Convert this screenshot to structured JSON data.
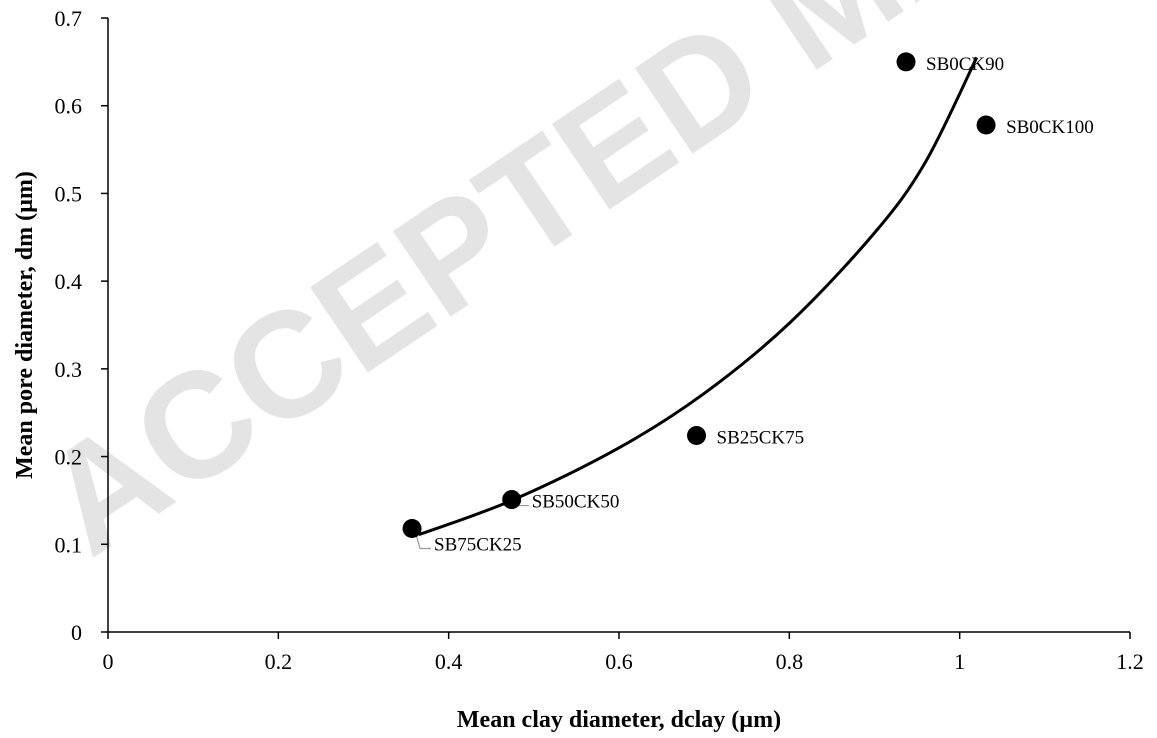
{
  "watermark": "ACCEPTED MANUSCRIPT",
  "chart_data": {
    "type": "scatter",
    "xlabel": "Mean clay diameter, dclay (µm)",
    "ylabel": "Mean pore diameter, dm (µm)",
    "xlim": [
      0,
      1.2
    ],
    "ylim": [
      0,
      0.7
    ],
    "x_ticks": [
      "0",
      "0.2",
      "0.4",
      "0.6",
      "0.8",
      "1",
      "1.2"
    ],
    "y_ticks": [
      "0",
      "0.1",
      "0.2",
      "0.3",
      "0.4",
      "0.5",
      "0.6",
      "0.7"
    ],
    "grid": "none",
    "legend": "none",
    "points": [
      {
        "label": "SB75CK25",
        "x": 0.357,
        "y": 0.118
      },
      {
        "label": "SB50CK50",
        "x": 0.474,
        "y": 0.151
      },
      {
        "label": "SB25CK75",
        "x": 0.691,
        "y": 0.224
      },
      {
        "label": "SB0CK90",
        "x": 0.937,
        "y": 0.65
      },
      {
        "label": "SB0CK100",
        "x": 1.031,
        "y": 0.578
      }
    ],
    "trendline": {
      "type": "exponential",
      "x": [
        0.365,
        0.474,
        0.6,
        0.7,
        0.8,
        0.9,
        0.96,
        1.02
      ],
      "y": [
        0.111,
        0.15,
        0.21,
        0.272,
        0.352,
        0.455,
        0.536,
        0.655
      ]
    },
    "colors": {
      "marker": "#000000",
      "line": "#000000",
      "axis": "#000000",
      "leader": "#999999"
    }
  }
}
